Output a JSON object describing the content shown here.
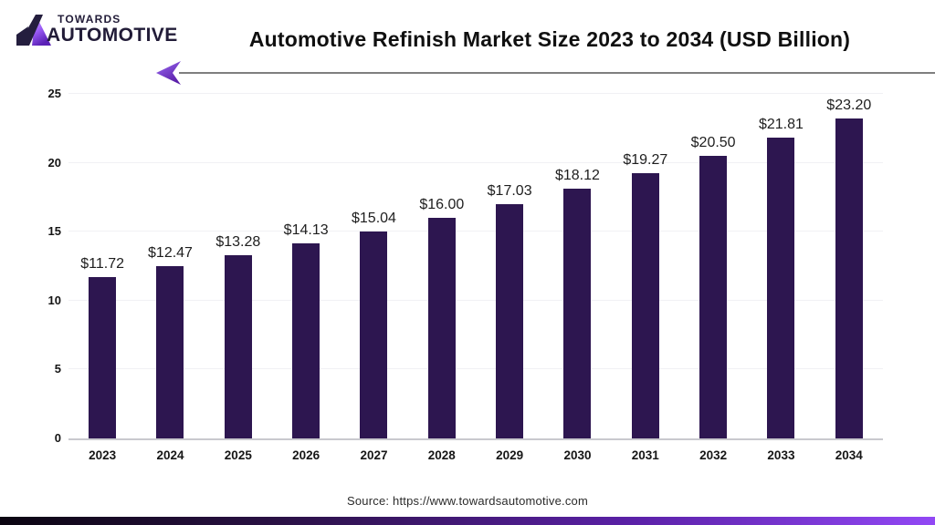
{
  "logo": {
    "towards": "TOWARDS",
    "automotive": "AUTOMOTIVE"
  },
  "header": {
    "title": "Automotive Refinish Market Size 2023 to 2034 (USD Billion)"
  },
  "chart_data": {
    "type": "bar",
    "title": "Automotive Refinish Market Size 2023 to 2034 (USD Billion)",
    "categories": [
      "2023",
      "2024",
      "2025",
      "2026",
      "2027",
      "2028",
      "2029",
      "2030",
      "2031",
      "2032",
      "2033",
      "2034"
    ],
    "values": [
      11.72,
      12.47,
      13.28,
      14.13,
      15.04,
      16.0,
      17.03,
      18.12,
      19.27,
      20.5,
      21.81,
      23.2
    ],
    "value_labels": [
      "$11.72",
      "$12.47",
      "$13.28",
      "$14.13",
      "$15.04",
      "$16.00",
      "$17.03",
      "$18.12",
      "$19.27",
      "$20.50",
      "$21.81",
      "$23.20"
    ],
    "xlabel": "",
    "ylabel": "",
    "ylim": [
      0,
      25
    ],
    "yticks": [
      0,
      5,
      10,
      15,
      20,
      25
    ],
    "grid": true,
    "legend": "none",
    "bar_color": "#2d1650"
  },
  "footer": {
    "source": "Source: https://www.towardsautomotive.com"
  },
  "colors": {
    "bar": "#2d1650",
    "accent_purple": "#7c3aed",
    "gridline": "#f1f1f4",
    "axis_line": "#c9c9ce",
    "band_gradient_start": "#0b0511",
    "band_gradient_end": "#9248f5"
  }
}
